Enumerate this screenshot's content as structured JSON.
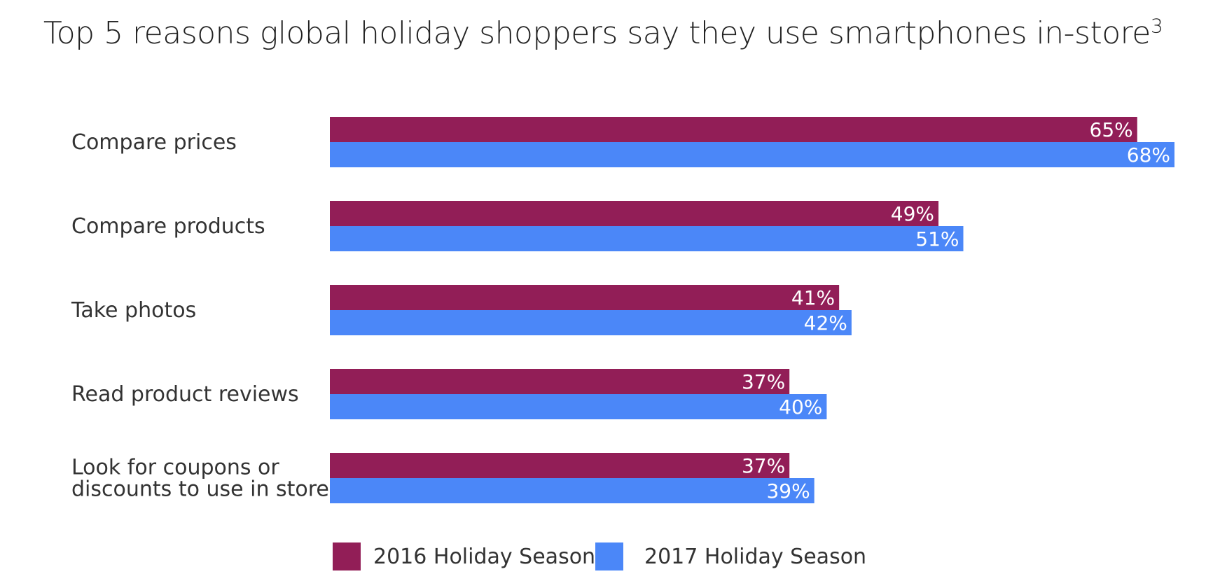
{
  "chart_data": {
    "type": "bar",
    "orientation": "horizontal",
    "title": "Top 5 reasons global holiday shoppers say they use smartphones in-store",
    "title_superscript": "3",
    "categories": [
      [
        "Compare prices"
      ],
      [
        "Compare products"
      ],
      [
        "Take photos"
      ],
      [
        "Read product reviews"
      ],
      [
        "Look for coupons or",
        "discounts to use in store"
      ]
    ],
    "series": [
      {
        "name": "2016 Holiday Season",
        "color": "#921E57",
        "values": [
          65,
          49,
          41,
          37,
          37
        ],
        "labels": [
          "65%",
          "49%",
          "41%",
          "37%",
          "37%"
        ]
      },
      {
        "name": "2017 Holiday Season",
        "color": "#4B87F8",
        "values": [
          68,
          51,
          42,
          40,
          39
        ],
        "labels": [
          "68%",
          "51%",
          "42%",
          "40%",
          "39%"
        ]
      }
    ],
    "value_unit": "%",
    "xlim": [
      0,
      68
    ],
    "xlabel": "",
    "ylabel": "",
    "grid": false,
    "legend_position": "bottom"
  }
}
